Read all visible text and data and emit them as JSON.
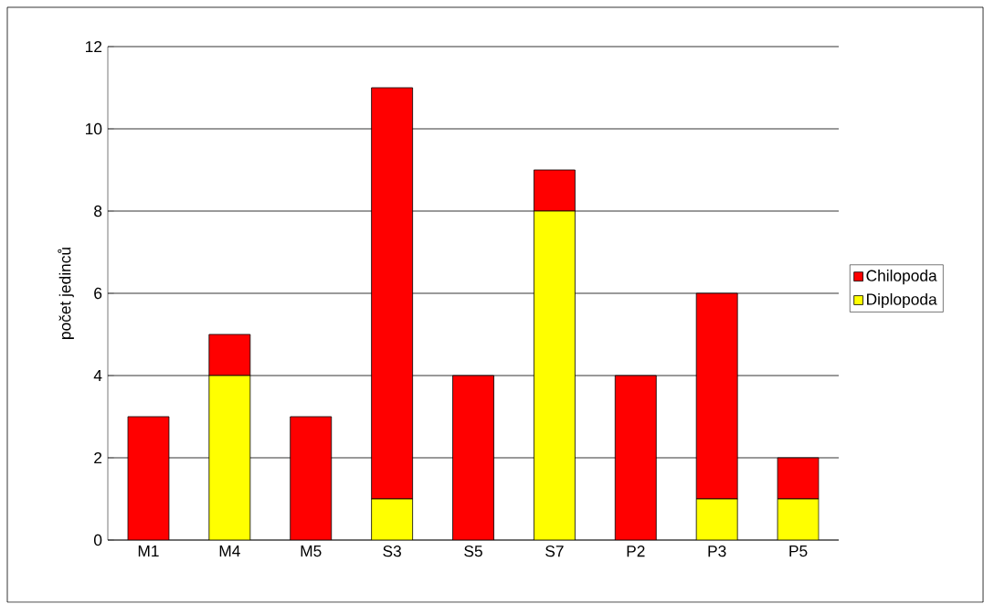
{
  "chart_data": {
    "type": "bar",
    "stacked": true,
    "ylabel": "počet jedinců",
    "categories": [
      "M1",
      "M4",
      "M5",
      "S3",
      "S5",
      "S7",
      "P2",
      "P3",
      "P5"
    ],
    "series": [
      {
        "name": "Diplopoda",
        "color": "#ffff00",
        "values": [
          0,
          4,
          0,
          1,
          0,
          8,
          0,
          1,
          1
        ]
      },
      {
        "name": "Chilopoda",
        "color": "#ff0000",
        "values": [
          3,
          1,
          3,
          10,
          4,
          1,
          4,
          5,
          1
        ]
      }
    ],
    "ylim": [
      0,
      12
    ],
    "yticks": [
      0,
      2,
      4,
      6,
      8,
      10,
      12
    ],
    "grid": "y",
    "legend": "right"
  }
}
